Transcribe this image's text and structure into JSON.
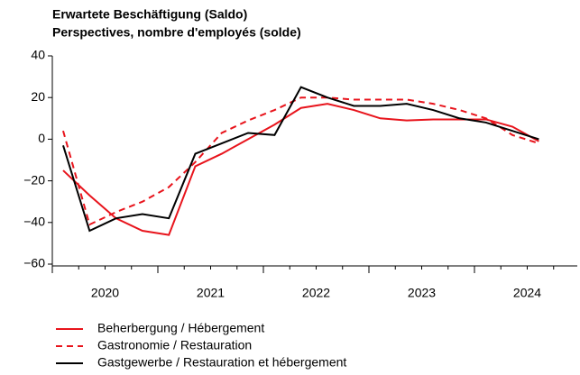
{
  "chart_data": {
    "type": "line",
    "title": [
      "Erwartete Beschäftigung (Saldo)",
      "Perspectives, nombre d'employés (solde)"
    ],
    "year_labels": [
      "2020",
      "2021",
      "2022",
      "2023",
      "2024"
    ],
    "categories": [
      null,
      null,
      null,
      null,
      null,
      null,
      null,
      null,
      null,
      null,
      null,
      null,
      null,
      null,
      null,
      null,
      null,
      null,
      null
    ],
    "ylim": [
      -60,
      40
    ],
    "yticks": [
      -60,
      -40,
      -20,
      0,
      20,
      40
    ],
    "tick_labels": [
      {
        "value": -60,
        "label": "−60"
      },
      {
        "value": -40,
        "label": "−40"
      },
      {
        "value": -20,
        "label": "−20"
      }
    ],
    "series": [
      {
        "name": "Beherbergung / Hébergement",
        "color": "#e8141c",
        "dash": false,
        "values": [
          -15,
          -27,
          -38,
          -44,
          -46,
          -13,
          -7,
          0,
          7,
          15,
          17,
          14,
          10,
          9,
          9.5,
          9.5,
          9.5,
          6,
          -1
        ]
      },
      {
        "name": "Gastronomie / Restauration",
        "color": "#e8141c",
        "dash": true,
        "values": [
          4,
          -41,
          -35,
          -30,
          -23,
          -11,
          3,
          9,
          14,
          20,
          20,
          19,
          19,
          19,
          17,
          14,
          10,
          2,
          -2
        ]
      },
      {
        "name": "Gastgewerbe / Restauration et hébergement",
        "color": "#000000",
        "dash": false,
        "values": [
          -3,
          -44,
          -38,
          -36,
          -38,
          -7,
          -2,
          3,
          2,
          25,
          20,
          16,
          16,
          17,
          14,
          10,
          8,
          4,
          0
        ]
      }
    ]
  }
}
